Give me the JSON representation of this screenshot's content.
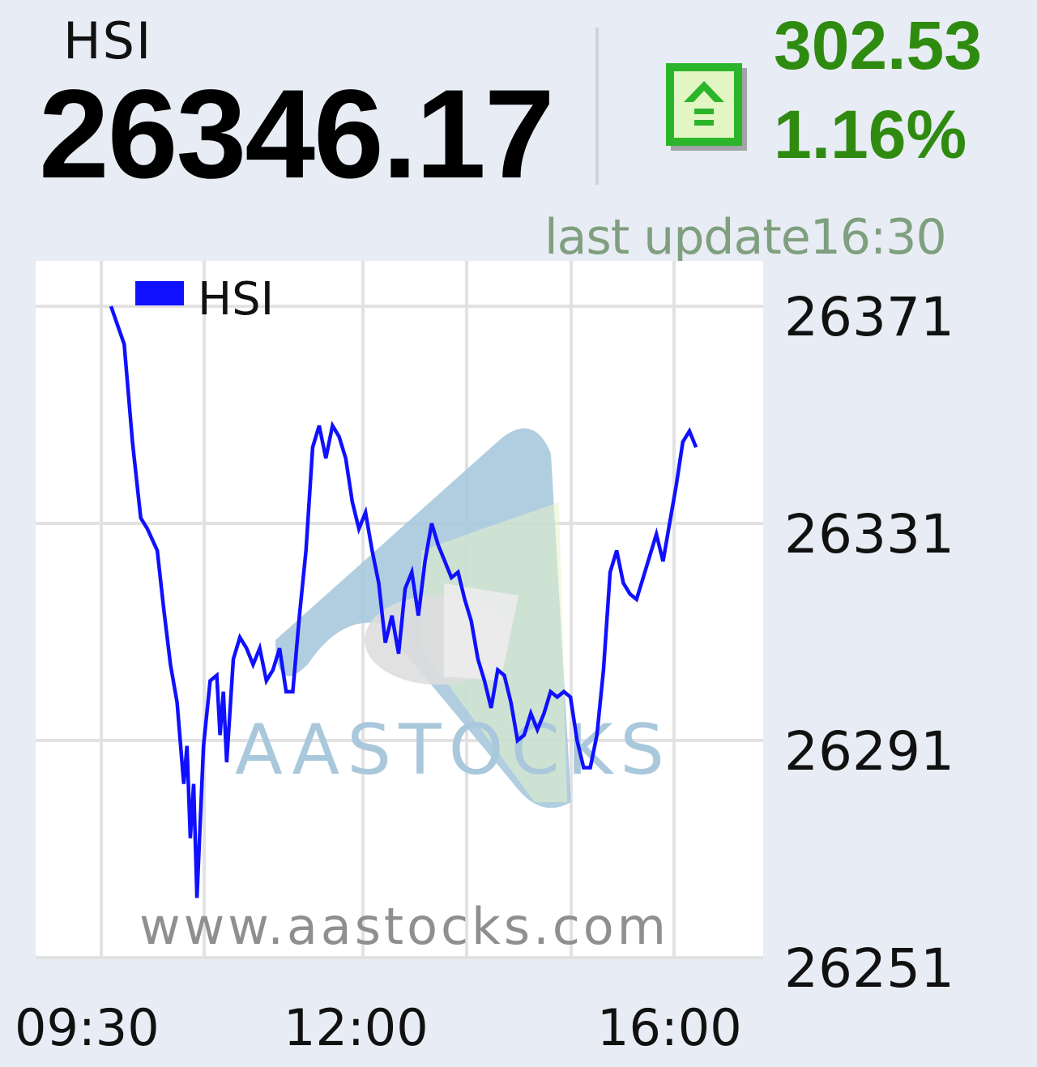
{
  "header": {
    "index_name": "HSI",
    "index_value": "26346.17",
    "change_value": "302.53",
    "change_percent": "1.16%",
    "last_update": "last update16:30",
    "direction_icon": "up-arrow-icon",
    "up_color": "#2e8b10"
  },
  "watermark": {
    "brand": "AASTOCKS",
    "url": "www.aastocks.com"
  },
  "chart_data": {
    "type": "line",
    "legend": [
      "HSI"
    ],
    "legend_placement": "top-left",
    "grid": true,
    "y_axis_position": "right",
    "ylim": [
      26251,
      26371
    ],
    "yticks": [
      "26371",
      "26331",
      "26291",
      "26251"
    ],
    "xticks": [
      {
        "label": "09:30",
        "x": 0
      },
      {
        "label": "12:00",
        "x": 2
      },
      {
        "label": "16:00",
        "x": 5
      }
    ],
    "series": [
      {
        "name": "HSI",
        "color": "#1010ff",
        "points": [
          [
            0,
            26371
          ],
          [
            0.08,
            26364
          ],
          [
            0.13,
            26346
          ],
          [
            0.18,
            26332
          ],
          [
            0.22,
            26330
          ],
          [
            0.28,
            26326
          ],
          [
            0.32,
            26315
          ],
          [
            0.36,
            26305
          ],
          [
            0.4,
            26298
          ],
          [
            0.44,
            26283
          ],
          [
            0.46,
            26290
          ],
          [
            0.48,
            26273
          ],
          [
            0.5,
            26283
          ],
          [
            0.52,
            26262
          ],
          [
            0.56,
            26290
          ],
          [
            0.6,
            26302
          ],
          [
            0.64,
            26303
          ],
          [
            0.66,
            26292
          ],
          [
            0.68,
            26300
          ],
          [
            0.7,
            26287
          ],
          [
            0.74,
            26306
          ],
          [
            0.78,
            26310
          ],
          [
            0.82,
            26308
          ],
          [
            0.86,
            26305
          ],
          [
            0.9,
            26308
          ],
          [
            0.94,
            26302
          ],
          [
            0.98,
            26304
          ],
          [
            1.02,
            26308
          ],
          [
            1.06,
            26300
          ],
          [
            1.1,
            26300
          ],
          [
            1.14,
            26314
          ],
          [
            1.18,
            26326
          ],
          [
            1.22,
            26345
          ],
          [
            1.26,
            26349
          ],
          [
            1.3,
            26343
          ],
          [
            1.34,
            26349
          ],
          [
            1.38,
            26347
          ],
          [
            1.42,
            26343
          ],
          [
            1.46,
            26335
          ],
          [
            1.5,
            26330
          ],
          [
            1.54,
            26333
          ],
          [
            1.58,
            26326
          ],
          [
            1.62,
            26320
          ],
          [
            1.66,
            26309
          ],
          [
            1.7,
            26314
          ],
          [
            1.74,
            26307
          ],
          [
            1.78,
            26319
          ],
          [
            1.82,
            26322
          ],
          [
            1.86,
            26314
          ],
          [
            1.9,
            26324
          ],
          [
            1.94,
            26331
          ],
          [
            1.98,
            26327
          ],
          [
            2.02,
            26324
          ],
          [
            2.06,
            26321
          ],
          [
            2.1,
            26322
          ],
          [
            2.14,
            26317
          ],
          [
            2.18,
            26313
          ],
          [
            2.22,
            26306
          ],
          [
            2.26,
            26302
          ],
          [
            2.3,
            26297
          ],
          [
            2.34,
            26304
          ],
          [
            2.38,
            26303
          ],
          [
            2.42,
            26298
          ],
          [
            2.46,
            26291
          ],
          [
            2.5,
            26292
          ],
          [
            2.54,
            26296
          ],
          [
            2.58,
            26293
          ],
          [
            2.62,
            26296
          ],
          [
            2.66,
            26300
          ],
          [
            2.7,
            26299
          ],
          [
            2.74,
            26300
          ],
          [
            2.78,
            26299
          ],
          [
            2.82,
            26291
          ],
          [
            2.86,
            26286
          ],
          [
            2.9,
            26286
          ],
          [
            2.94,
            26292
          ],
          [
            2.98,
            26304
          ],
          [
            3.02,
            26322
          ],
          [
            3.06,
            26326
          ],
          [
            3.1,
            26320
          ],
          [
            3.14,
            26318
          ],
          [
            3.18,
            26317
          ],
          [
            3.22,
            26321
          ],
          [
            3.26,
            26325
          ],
          [
            3.3,
            26329
          ],
          [
            3.34,
            26324
          ],
          [
            3.38,
            26331
          ],
          [
            3.42,
            26338
          ],
          [
            3.46,
            26346
          ],
          [
            3.5,
            26348
          ],
          [
            3.54,
            26345
          ]
        ]
      }
    ]
  }
}
